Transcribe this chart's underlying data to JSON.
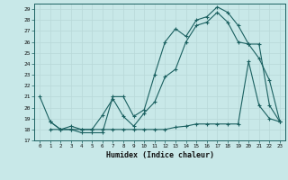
{
  "xlabel": "Humidex (Indice chaleur)",
  "background_color": "#c8e8e8",
  "grid_color": "#b8d8d8",
  "line_color": "#1a6060",
  "xlim": [
    -0.5,
    23.5
  ],
  "ylim": [
    17,
    29.5
  ],
  "yticks": [
    17,
    18,
    19,
    20,
    21,
    22,
    23,
    24,
    25,
    26,
    27,
    28,
    29
  ],
  "xticks": [
    0,
    1,
    2,
    3,
    4,
    5,
    6,
    7,
    8,
    9,
    10,
    11,
    12,
    13,
    14,
    15,
    16,
    17,
    18,
    19,
    20,
    21,
    22,
    23
  ],
  "line1_x": [
    0,
    1,
    2,
    3,
    4,
    5,
    6,
    7,
    8,
    9,
    10,
    11,
    12,
    13,
    14,
    15,
    16,
    17,
    18,
    19,
    20,
    21,
    22,
    23
  ],
  "line1_y": [
    21.0,
    18.7,
    18.0,
    18.0,
    17.7,
    17.7,
    17.7,
    21.0,
    21.0,
    19.2,
    19.8,
    23.0,
    26.0,
    27.2,
    26.5,
    28.0,
    28.3,
    29.2,
    28.7,
    27.5,
    25.8,
    25.8,
    20.2,
    18.7
  ],
  "line2_x": [
    1,
    2,
    3,
    4,
    5,
    6,
    7,
    8,
    9,
    10,
    11,
    12,
    13,
    14,
    15,
    16,
    17,
    18,
    19,
    20,
    21,
    22,
    23
  ],
  "line2_y": [
    18.7,
    18.0,
    18.3,
    18.0,
    18.0,
    19.3,
    20.8,
    19.2,
    18.3,
    19.5,
    20.5,
    22.8,
    23.5,
    26.0,
    27.5,
    27.8,
    28.7,
    27.8,
    26.0,
    25.8,
    24.5,
    22.5,
    18.7
  ],
  "line3_x": [
    1,
    2,
    3,
    4,
    5,
    6,
    7,
    8,
    9,
    10,
    11,
    12,
    13,
    14,
    15,
    16,
    17,
    18,
    19,
    20,
    21,
    22,
    23
  ],
  "line3_y": [
    18.0,
    18.0,
    18.0,
    18.0,
    18.0,
    18.0,
    18.0,
    18.0,
    18.0,
    18.0,
    18.0,
    18.0,
    18.2,
    18.3,
    18.5,
    18.5,
    18.5,
    18.5,
    18.5,
    24.2,
    20.2,
    19.0,
    18.7
  ]
}
